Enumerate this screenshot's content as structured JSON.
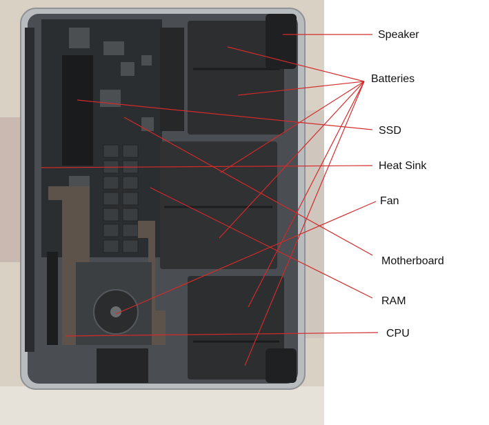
{
  "figure": {
    "subject": "Laptop internals with callouts",
    "leader_color": "#d42a2a"
  },
  "callouts": {
    "speaker": "Speaker",
    "batteries": "Batteries",
    "ssd": "SSD",
    "heat_sink": "Heat Sink",
    "fan": "Fan",
    "motherboard": "Motherboard",
    "ram": "RAM",
    "cpu": "CPU"
  }
}
